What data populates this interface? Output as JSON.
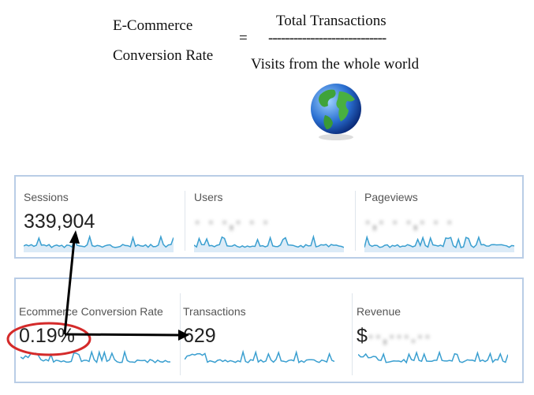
{
  "formula": {
    "lhs_line1": "E-Commerce",
    "lhs_line2": "Conversion Rate",
    "equals": "=",
    "numerator": "Total Transactions",
    "fraction_bar": "----------------------------",
    "denominator": "Visits from the whole world",
    "icon": "globe-icon"
  },
  "panel1": [
    {
      "label": "Sessions",
      "value": "339,904"
    },
    {
      "label": "Users",
      "value": ""
    },
    {
      "label": "Pageviews",
      "value": ""
    }
  ],
  "panel2": [
    {
      "label": "Ecommerce Conversion Rate",
      "value": "0.19%"
    },
    {
      "label": "Transactions",
      "value": "629"
    },
    {
      "label": "Revenue",
      "value": "$"
    }
  ],
  "colors": {
    "sparkline": "#3a9fd0",
    "highlight_circle": "#d42a2a",
    "arrow": "#000000",
    "panel_border": "#b9cde6"
  }
}
